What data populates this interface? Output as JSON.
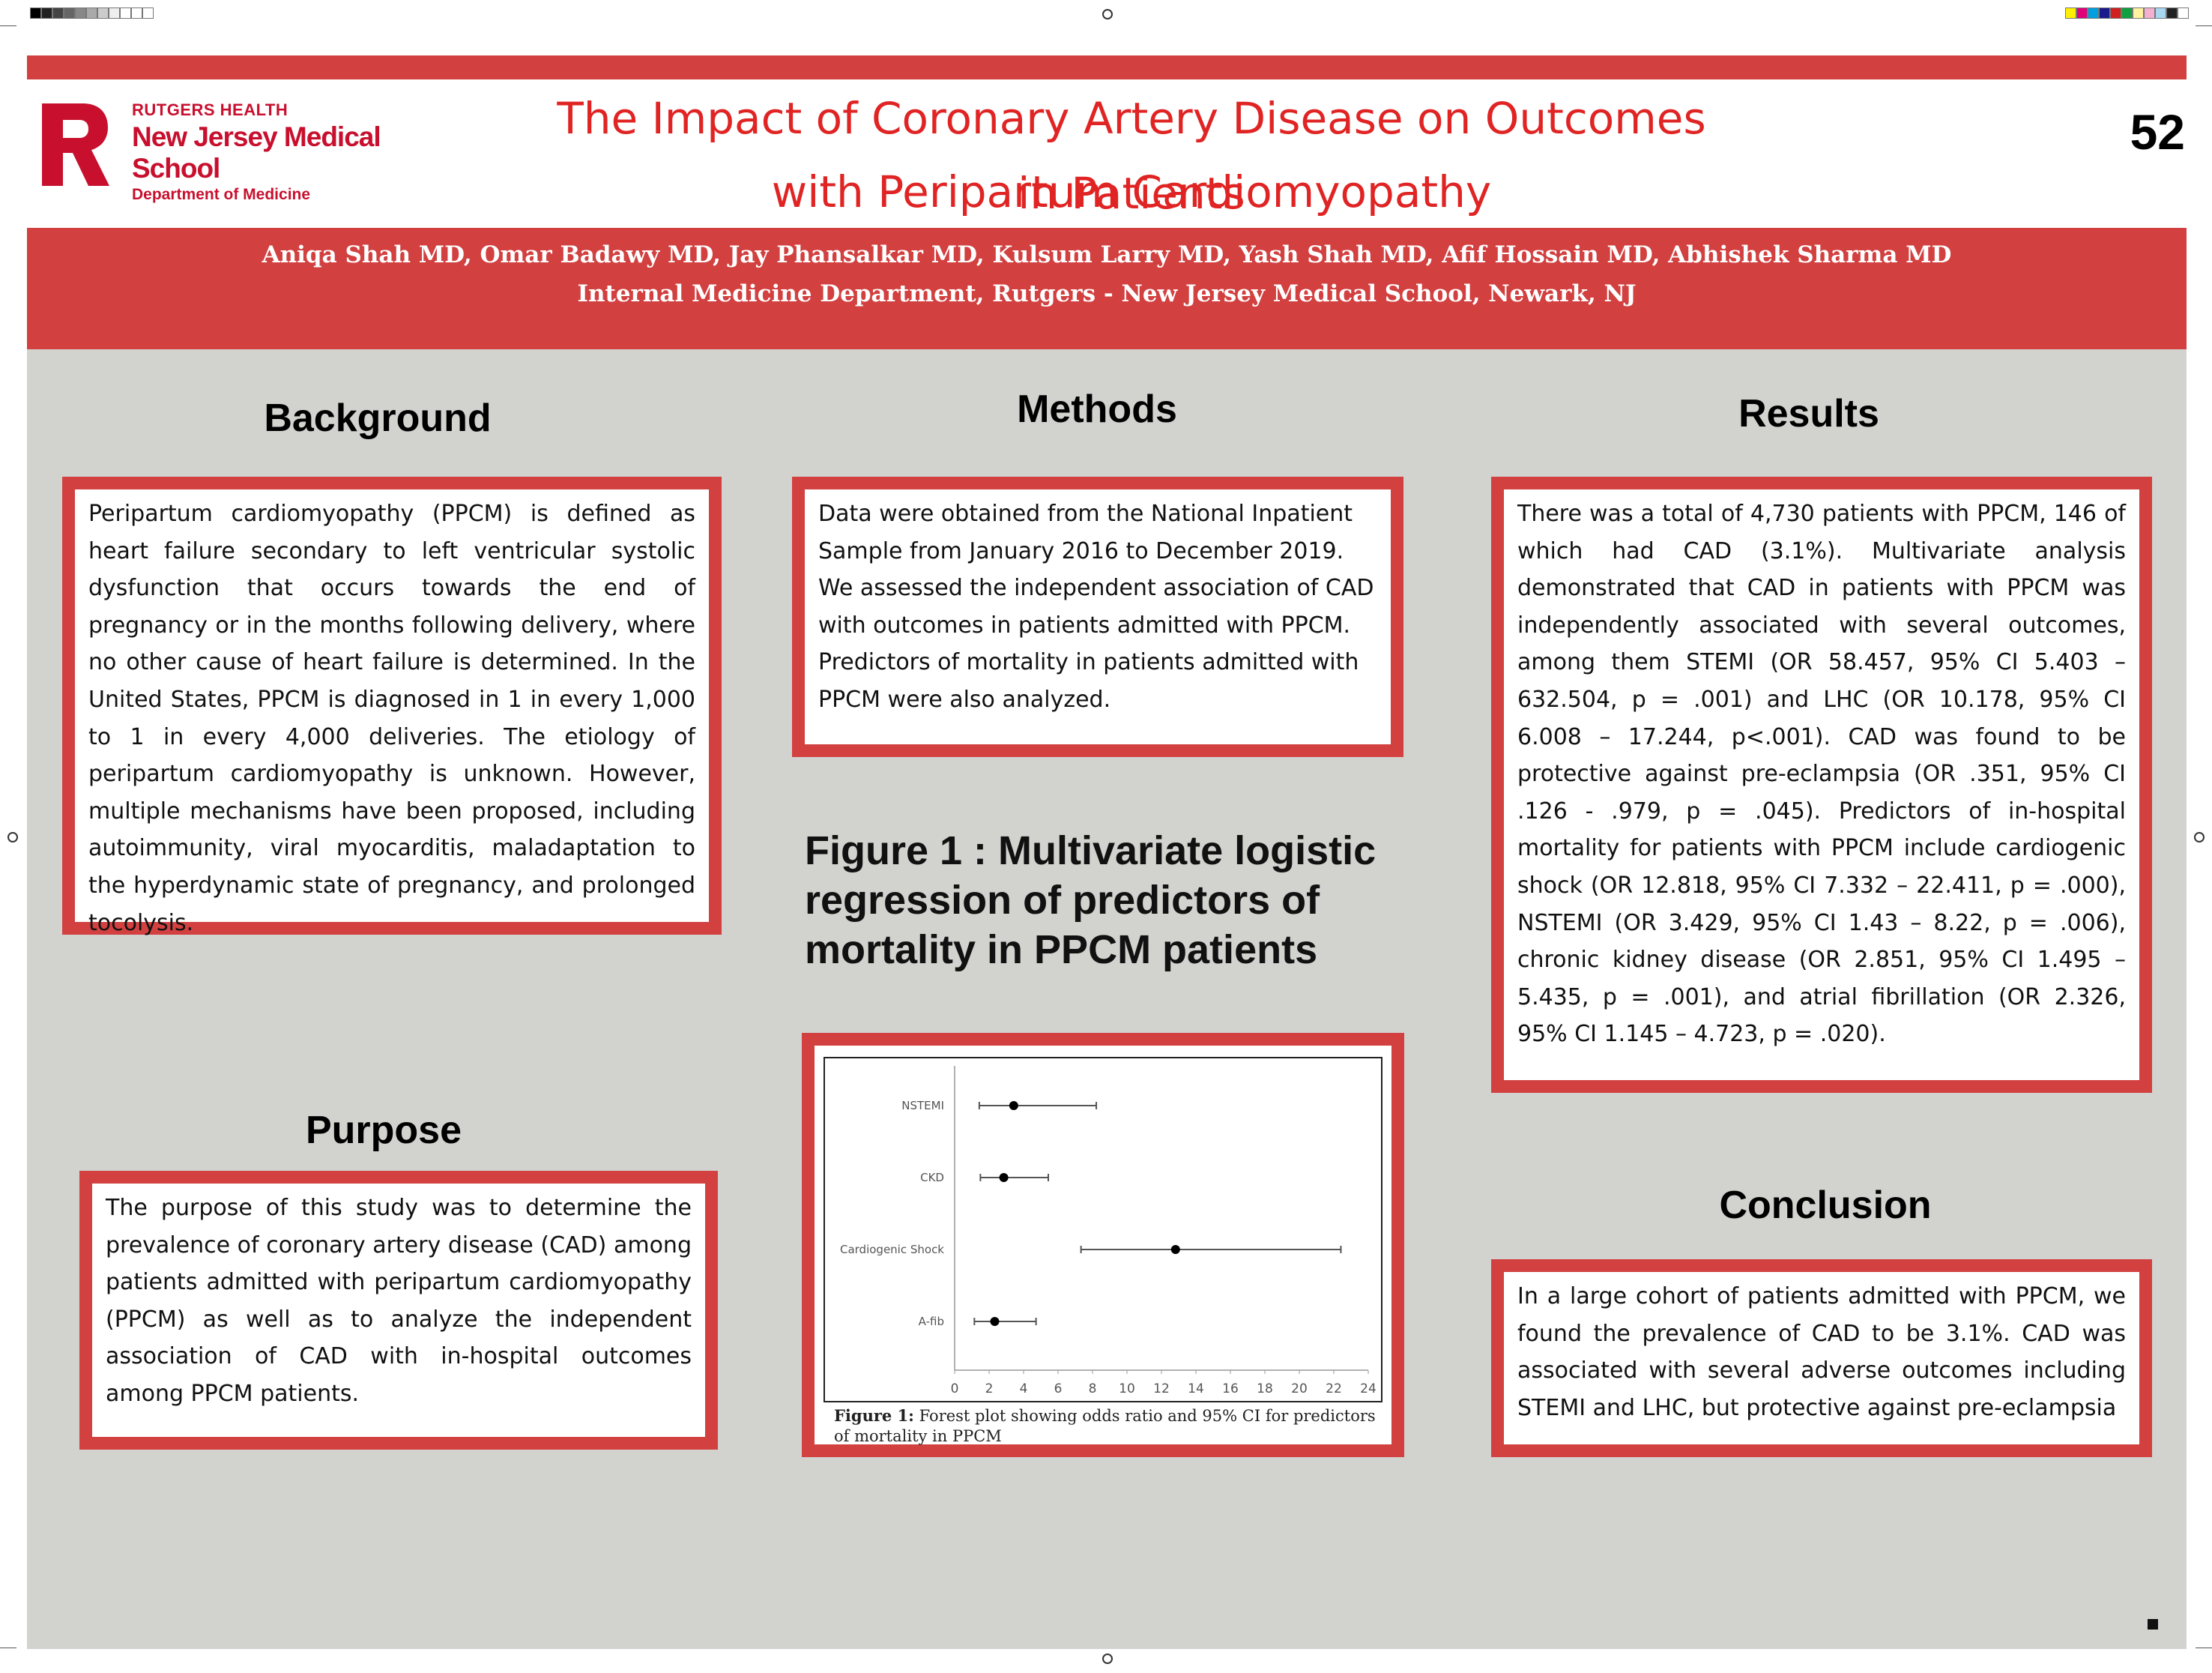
{
  "header": {
    "title_line1": "The Impact of Coronary Artery Disease on Outcomes in Patients",
    "title_line2": "with Peripartum Cardiomyopathy",
    "poster_number": "52",
    "authors": "Aniqa Shah MD, Omar Badawy MD, Jay Phansalkar MD, Kulsum Larry MD, Yash Shah MD, Afif Hossain MD, Abhishek Sharma MD",
    "affiliation": "Internal Medicine Department, Rutgers - New Jersey Medical School, Newark, NJ"
  },
  "logo": {
    "letter": "R",
    "line1": "RUTGERS HEALTH",
    "line2": "New Jersey Medical School",
    "line3": "Department of Medicine"
  },
  "background": {
    "heading": "Background",
    "text": "Peripartum cardiomyopathy (PPCM) is defined as heart failure secondary to left ventricular systolic dysfunction that occurs towards the end of pregnancy or in the months following delivery, where no other cause of heart failure is determined. In the United States, PPCM is diagnosed in 1 in every 1,000 to 1 in every 4,000 deliveries. The etiology of peripartum cardiomyopathy is unknown.  However, multiple mechanisms have been proposed, including autoimmunity, viral myocarditis, maladaptation to the hyperdynamic state of pregnancy, and prolonged tocolysis."
  },
  "purpose": {
    "heading": "Purpose",
    "text": "The purpose of this study was to determine the prevalence of coronary artery disease (CAD) among patients admitted with peripartum cardiomyopathy (PPCM) as well as to analyze the independent association of CAD with in-hospital outcomes among PPCM patients."
  },
  "methods": {
    "heading": "Methods",
    "text": "Data were obtained from the National Inpatient Sample from January 2016 to December 2019. We assessed the independent association of CAD with outcomes in patients admitted with PPCM. Predictors of mortality in patients admitted with PPCM were also analyzed."
  },
  "figure": {
    "big_caption": "Figure 1 : Multivariate logistic regression of predictors of mortality in PPCM patients",
    "caption_label": "Figure 1:",
    "caption_text": " Forest plot showing odds ratio and 95% CI for predictors of mortality in PPCM"
  },
  "results": {
    "heading": "Results",
    "text": "There was a total of 4,730 patients with PPCM, 146 of which had CAD (3.1%). Multivariate analysis demonstrated that CAD in patients with PPCM was independently associated with several outcomes, among them STEMI (OR 58.457, 95% CI 5.403 – 632.504, p = .001) and LHC (OR 10.178, 95% CI 6.008 – 17.244, p<.001). CAD was found to be protective against pre-eclampsia (OR .351, 95% CI .126 - .979, p = .045). Predictors of in-hospital mortality for patients with PPCM include cardiogenic shock (OR 12.818, 95% CI 7.332 – 22.411, p = .000), NSTEMI (OR 3.429, 95% CI 1.43 – 8.22, p = .006), chronic kidney disease (OR 2.851, 95% CI 1.495 – 5.435, p = .001), and atrial fibrillation (OR 2.326, 95% CI 1.145 – 4.723, p = .020)."
  },
  "conclusion": {
    "heading": "Conclusion",
    "text": "In a large cohort of patients admitted with PPCM, we found the prevalence of CAD to be 3.1%. CAD was associated with several adverse outcomes including STEMI and LHC, but protective against pre-eclampsia"
  },
  "chart_data": {
    "type": "forest",
    "categories": [
      "NSTEMI",
      "CKD",
      "Cardiogenic Shock",
      "A-fib"
    ],
    "or": [
      3.429,
      2.851,
      12.818,
      2.326
    ],
    "ci_low": [
      1.43,
      1.495,
      7.332,
      1.145
    ],
    "ci_high": [
      8.22,
      5.435,
      22.411,
      4.723
    ],
    "xlim": [
      0,
      24
    ],
    "xticks": [
      0,
      2,
      4,
      6,
      8,
      10,
      12,
      14,
      16,
      18,
      20,
      22,
      24
    ]
  },
  "colors": {
    "accent_red": "#d24040",
    "title_red": "#e02424",
    "poster_gray": "#d2d2cf"
  }
}
